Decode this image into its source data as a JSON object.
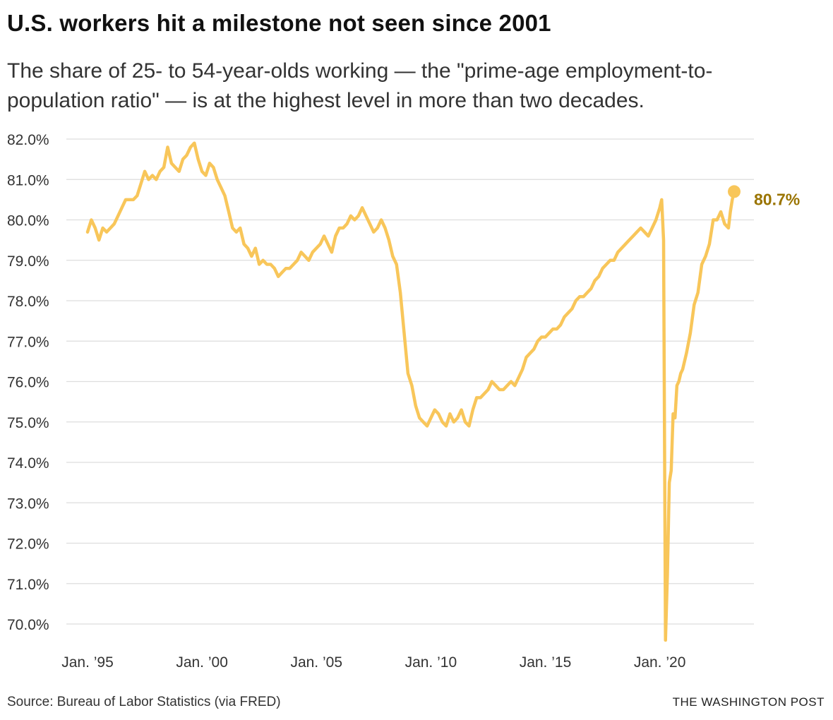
{
  "header": {
    "title": "U.S. workers hit a milestone not seen since 2001",
    "subtitle": "The share of 25- to 54-year-olds working — the \"prime-age employment-to-population ratio\" — is at the highest level in more than two decades."
  },
  "footer": {
    "source": "Source: Bureau of Labor Statistics (via FRED)",
    "brand": "THE WASHINGTON POST"
  },
  "colors": {
    "line": "#f8c65a",
    "label": "#9a7400",
    "grid": "#dddddd",
    "text": "#333333"
  },
  "chart_data": {
    "type": "line",
    "title": "U.S. workers hit a milestone not seen since 2001",
    "xlabel": "",
    "ylabel": "",
    "ylim": [
      70,
      82
    ],
    "xlim": [
      "1995-01",
      "2023-04"
    ],
    "yticks": [
      82,
      81,
      80,
      79,
      78,
      77,
      76,
      75,
      74,
      73,
      72,
      71,
      70
    ],
    "ytick_labels": [
      "82.0%",
      "81.0%",
      "80.0%",
      "79.0%",
      "78.0%",
      "77.0%",
      "76.0%",
      "75.0%",
      "74.0%",
      "73.0%",
      "72.0%",
      "71.0%",
      "70.0%"
    ],
    "xticks": [
      1995,
      2000,
      2005,
      2010,
      2015,
      2020
    ],
    "xtick_labels": [
      "Jan. ’95",
      "Jan. ’00",
      "Jan. ’05",
      "Jan. ’10",
      "Jan. ’15",
      "Jan. ’20"
    ],
    "grid": true,
    "end_label": "80.7%",
    "series": [
      {
        "x": [
          "1995-01",
          "1995-03",
          "1995-05",
          "1995-07",
          "1995-09",
          "1995-11",
          "1996-01",
          "1996-03",
          "1996-05",
          "1996-07",
          "1996-09",
          "1996-11",
          "1997-01",
          "1997-03",
          "1997-05",
          "1997-07",
          "1997-09",
          "1997-11",
          "1998-01",
          "1998-03",
          "1998-05",
          "1998-07",
          "1998-09",
          "1998-11",
          "1999-01",
          "1999-03",
          "1999-05",
          "1999-07",
          "1999-09",
          "1999-11",
          "2000-01",
          "2000-03",
          "2000-05",
          "2000-07",
          "2000-09",
          "2000-11",
          "2001-01",
          "2001-03",
          "2001-05",
          "2001-07",
          "2001-09",
          "2001-11",
          "2002-01",
          "2002-03",
          "2002-05",
          "2002-07",
          "2002-09",
          "2002-11",
          "2003-01",
          "2003-03",
          "2003-05",
          "2003-07",
          "2003-09",
          "2003-11",
          "2004-01",
          "2004-03",
          "2004-05",
          "2004-07",
          "2004-09",
          "2004-11",
          "2005-01",
          "2005-03",
          "2005-05",
          "2005-07",
          "2005-09",
          "2005-11",
          "2006-01",
          "2006-03",
          "2006-05",
          "2006-07",
          "2006-09",
          "2006-11",
          "2007-01",
          "2007-03",
          "2007-05",
          "2007-07",
          "2007-09",
          "2007-11",
          "2008-01",
          "2008-03",
          "2008-05",
          "2008-07",
          "2008-09",
          "2008-11",
          "2009-01",
          "2009-03",
          "2009-05",
          "2009-07",
          "2009-09",
          "2009-11",
          "2010-01",
          "2010-03",
          "2010-05",
          "2010-07",
          "2010-09",
          "2010-11",
          "2011-01",
          "2011-03",
          "2011-05",
          "2011-07",
          "2011-09",
          "2011-11",
          "2012-01",
          "2012-03",
          "2012-05",
          "2012-07",
          "2012-09",
          "2012-11",
          "2013-01",
          "2013-03",
          "2013-05",
          "2013-07",
          "2013-09",
          "2013-11",
          "2014-01",
          "2014-03",
          "2014-05",
          "2014-07",
          "2014-09",
          "2014-11",
          "2015-01",
          "2015-03",
          "2015-05",
          "2015-07",
          "2015-09",
          "2015-11",
          "2016-01",
          "2016-03",
          "2016-05",
          "2016-07",
          "2016-09",
          "2016-11",
          "2017-01",
          "2017-03",
          "2017-05",
          "2017-07",
          "2017-09",
          "2017-11",
          "2018-01",
          "2018-03",
          "2018-05",
          "2018-07",
          "2018-09",
          "2018-11",
          "2019-01",
          "2019-03",
          "2019-05",
          "2019-07",
          "2019-09",
          "2019-11",
          "2020-01",
          "2020-02",
          "2020-03",
          "2020-04",
          "2020-05",
          "2020-06",
          "2020-07",
          "2020-08",
          "2020-09",
          "2020-10",
          "2020-11",
          "2020-12",
          "2021-01",
          "2021-03",
          "2021-05",
          "2021-07",
          "2021-09",
          "2021-11",
          "2022-01",
          "2022-03",
          "2022-05",
          "2022-07",
          "2022-09",
          "2022-11",
          "2023-01",
          "2023-02",
          "2023-03",
          "2023-04"
        ],
        "values": [
          79.7,
          80.0,
          79.8,
          79.5,
          79.8,
          79.7,
          79.8,
          79.9,
          80.1,
          80.3,
          80.5,
          80.5,
          80.5,
          80.6,
          80.9,
          81.2,
          81.0,
          81.1,
          81.0,
          81.2,
          81.3,
          81.8,
          81.4,
          81.3,
          81.2,
          81.5,
          81.6,
          81.8,
          81.9,
          81.5,
          81.2,
          81.1,
          81.4,
          81.3,
          81.0,
          80.8,
          80.6,
          80.2,
          79.8,
          79.7,
          79.8,
          79.4,
          79.3,
          79.1,
          79.3,
          78.9,
          79.0,
          78.9,
          78.9,
          78.8,
          78.6,
          78.7,
          78.8,
          78.8,
          78.9,
          79.0,
          79.2,
          79.1,
          79.0,
          79.2,
          79.3,
          79.4,
          79.6,
          79.4,
          79.2,
          79.6,
          79.8,
          79.8,
          79.9,
          80.1,
          80.0,
          80.1,
          80.3,
          80.1,
          79.9,
          79.7,
          79.8,
          80.0,
          79.8,
          79.5,
          79.1,
          78.9,
          78.2,
          77.2,
          76.2,
          75.9,
          75.4,
          75.1,
          75.0,
          74.9,
          75.1,
          75.3,
          75.2,
          75.0,
          74.9,
          75.2,
          75.0,
          75.1,
          75.3,
          75.0,
          74.9,
          75.3,
          75.6,
          75.6,
          75.7,
          75.8,
          76.0,
          75.9,
          75.8,
          75.8,
          75.9,
          76.0,
          75.9,
          76.1,
          76.3,
          76.6,
          76.7,
          76.8,
          77.0,
          77.1,
          77.1,
          77.2,
          77.3,
          77.3,
          77.4,
          77.6,
          77.7,
          77.8,
          78.0,
          78.1,
          78.1,
          78.2,
          78.3,
          78.5,
          78.6,
          78.8,
          78.9,
          79.0,
          79.0,
          79.2,
          79.3,
          79.4,
          79.5,
          79.6,
          79.7,
          79.8,
          79.7,
          79.6,
          79.8,
          80.0,
          80.3,
          80.5,
          79.5,
          69.6,
          71.2,
          73.5,
          73.8,
          75.2,
          75.1,
          75.9,
          76.0,
          76.2,
          76.3,
          76.7,
          77.2,
          77.9,
          78.2,
          78.9,
          79.1,
          79.4,
          80.0,
          80.0,
          80.2,
          79.9,
          79.8,
          80.2,
          80.5,
          80.7
        ]
      }
    ]
  }
}
